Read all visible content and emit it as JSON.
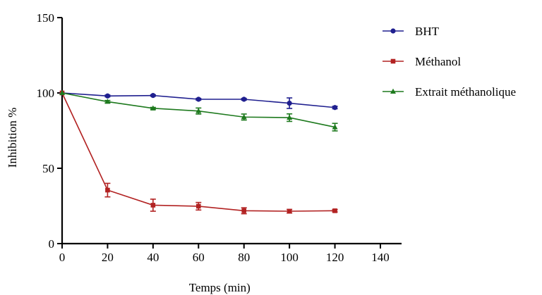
{
  "chart_data": {
    "type": "line",
    "title": "",
    "xlabel": "Temps (min)",
    "ylabel": "Inhibition %",
    "xlim": [
      0,
      140
    ],
    "ylim": [
      0,
      150
    ],
    "xticks": [
      0,
      20,
      40,
      60,
      80,
      100,
      120,
      140
    ],
    "yticks": [
      0,
      50,
      100,
      150
    ],
    "grid": false,
    "legend_position": "top-right",
    "x": [
      0,
      20,
      40,
      60,
      80,
      100,
      120
    ],
    "series": [
      {
        "name": "BHT",
        "color": "#1f1f8f",
        "marker": "circle",
        "values": [
          100,
          98,
          98.3,
          95.8,
          95.8,
          93.2,
          90.3
        ],
        "errors": [
          0,
          0.6,
          0.5,
          0.6,
          0.6,
          3.5,
          0.8
        ]
      },
      {
        "name": "Méthanol",
        "color": "#b22222",
        "marker": "square",
        "values": [
          100,
          35.5,
          25.5,
          24.8,
          21.8,
          21.5,
          21.8
        ],
        "errors": [
          0,
          4.5,
          4.0,
          2.5,
          2.0,
          1.2,
          0.8
        ]
      },
      {
        "name": "Extrait méthanolique",
        "color": "#1e7a1e",
        "marker": "triangle",
        "values": [
          100,
          94.2,
          89.8,
          88,
          84,
          83.6,
          77.3
        ],
        "errors": [
          0,
          0.8,
          0.6,
          2.0,
          2.0,
          2.5,
          2.5
        ]
      }
    ]
  }
}
